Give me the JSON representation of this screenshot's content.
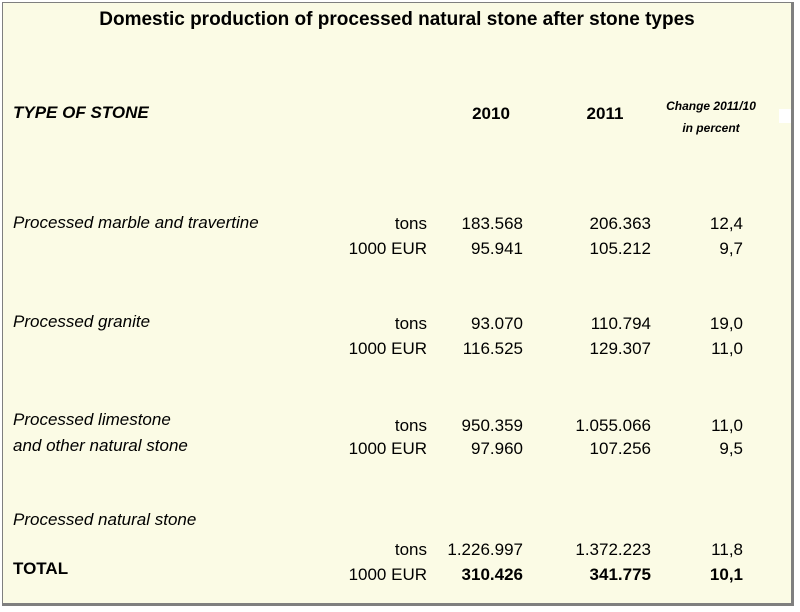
{
  "title": "Domestic production of processed natural stone after stone types",
  "header": {
    "type_of_stone": "TYPE OF STONE",
    "year1": "2010",
    "year2": "2011",
    "change_line1": "Change 2011/10",
    "change_line2": "in percent"
  },
  "groups": [
    {
      "name_line1": "Processed marble and travertine",
      "rows": [
        {
          "unit": "tons",
          "v2010": "183.568",
          "v2011": "206.363",
          "change": "12,4"
        },
        {
          "unit": "1000 EUR",
          "v2010": "95.941",
          "v2011": "105.212",
          "change": "9,7"
        }
      ]
    },
    {
      "name_line1": "Processed granite",
      "rows": [
        {
          "unit": "tons",
          "v2010": "93.070",
          "v2011": "110.794",
          "change": "19,0"
        },
        {
          "unit": "1000 EUR",
          "v2010": "116.525",
          "v2011": "129.307",
          "change": "11,0"
        }
      ]
    },
    {
      "name_line1": "Processed limestone",
      "name_line2": "and other natural stone",
      "rows": [
        {
          "unit": "tons",
          "v2010": "950.359",
          "v2011": "1.055.066",
          "change": "11,0"
        },
        {
          "unit": "1000 EUR",
          "v2010": "97.960",
          "v2011": "107.256",
          "change": "9,5"
        }
      ]
    },
    {
      "name_line1": "Processed natural stone",
      "total_label": "TOTAL",
      "rows": [
        {
          "unit": "tons",
          "v2010": "1.226.997",
          "v2011": "1.372.223",
          "change": "11,8"
        },
        {
          "unit": "1000 EUR",
          "v2010": "310.426",
          "v2011": "341.775",
          "change": "10,1"
        }
      ]
    }
  ]
}
